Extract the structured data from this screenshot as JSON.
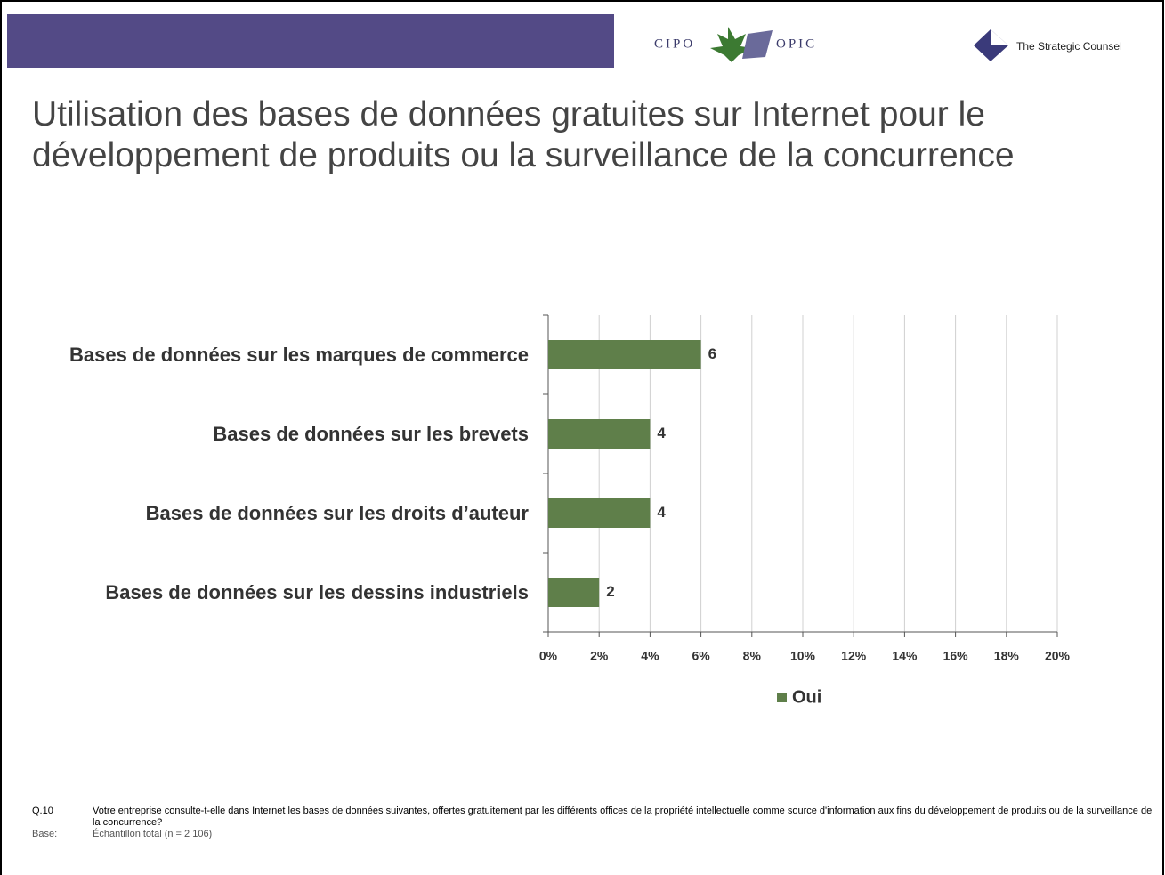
{
  "header": {
    "logo_left": "CIPO",
    "logo_right": "OPIC",
    "brand": "The Strategic Counsel"
  },
  "chart_data": {
    "type": "barh",
    "title": "Utilisation des bases de données gratuites sur Internet pour le développement de produits ou la surveillance de la concurrence",
    "categories": [
      "Bases de données sur les marques de commerce",
      "Bases de données sur les brevets",
      "Bases de données sur les droits d’auteur",
      "Bases de données sur les dessins industriels"
    ],
    "series": [
      {
        "name": "Oui",
        "color": "#5f7f4a",
        "values": [
          6,
          4,
          4,
          2
        ]
      }
    ],
    "xlim": [
      0,
      20
    ],
    "xticks": [
      {
        "value": 0,
        "label": "0%"
      },
      {
        "value": 2,
        "label": "2%"
      },
      {
        "value": 4,
        "label": "4%"
      },
      {
        "value": 6,
        "label": "6%"
      },
      {
        "value": 8,
        "label": "8%"
      },
      {
        "value": 10,
        "label": "10%"
      },
      {
        "value": 12,
        "label": "12%"
      },
      {
        "value": 14,
        "label": "14%"
      },
      {
        "value": 16,
        "label": "16%"
      },
      {
        "value": 18,
        "label": "18%"
      },
      {
        "value": 20,
        "label": "20%"
      }
    ],
    "grid": true,
    "legend": "bottom"
  },
  "footer": {
    "question_number": "Q.10",
    "question": "Votre entreprise consulte-t-elle dans Internet les bases de données suivantes, offertes gratuitement par les différents offices de la propriété intellectuelle comme source d'information aux fins du développement de produits ou de la surveillance de la concurrence?",
    "base_label": "Base:",
    "base": "Échantillon total (n = 2 106)"
  }
}
